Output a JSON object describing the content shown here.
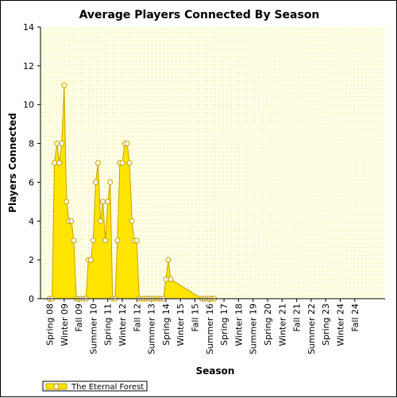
{
  "chart_data": {
    "type": "area",
    "title": "Average Players Connected By Season",
    "xlabel": "Season",
    "ylabel": "Players Connected",
    "ylim": [
      0,
      14
    ],
    "yticks": [
      0,
      2,
      4,
      6,
      8,
      10,
      12,
      14
    ],
    "categories": [
      "Spring 08",
      "Winter 09",
      "Fall 09",
      "Summer 10",
      "Spring 11",
      "Winter 12",
      "Fall 12",
      "Summer 13",
      "Spring 14",
      "Winter 15",
      "Fall 15",
      "Summer 16",
      "Spring 17",
      "Winter 18",
      "Summer 19",
      "Spring 20",
      "Winter 21",
      "Fall 21",
      "Summer 22",
      "Spring 23",
      "Winter 24",
      "Fall 24"
    ],
    "grid": true,
    "legend_position": "bottom-left",
    "series": [
      {
        "name": "The Eternal Forest",
        "color": "#FFE400",
        "edge_color": "#C8A000",
        "points": [
          [
            0.0,
            0
          ],
          [
            0.5,
            0
          ],
          [
            1.0,
            7
          ],
          [
            1.5,
            8
          ],
          [
            2.0,
            7
          ],
          [
            2.5,
            8
          ],
          [
            3.0,
            11
          ],
          [
            3.5,
            5
          ],
          [
            4.0,
            4
          ],
          [
            4.5,
            4
          ],
          [
            5.0,
            3
          ],
          [
            5.5,
            0
          ],
          [
            6.0,
            0
          ],
          [
            6.5,
            0
          ],
          [
            7.0,
            0
          ],
          [
            7.5,
            0
          ],
          [
            8.0,
            2
          ],
          [
            8.5,
            2
          ],
          [
            9.0,
            3
          ],
          [
            9.5,
            6
          ],
          [
            10.0,
            7
          ],
          [
            10.5,
            4
          ],
          [
            11.0,
            5
          ],
          [
            11.5,
            3
          ],
          [
            12.0,
            5
          ],
          [
            12.5,
            6
          ],
          [
            13.0,
            0
          ],
          [
            13.5,
            0
          ],
          [
            14.0,
            3
          ],
          [
            14.5,
            7
          ],
          [
            15.0,
            7
          ],
          [
            15.5,
            8
          ],
          [
            16.0,
            8
          ],
          [
            16.5,
            7
          ],
          [
            17.0,
            4
          ],
          [
            17.5,
            3
          ],
          [
            18.0,
            3
          ],
          [
            18.5,
            0
          ],
          [
            19.0,
            0
          ],
          [
            19.5,
            0
          ],
          [
            20.0,
            0
          ],
          [
            20.5,
            0
          ],
          [
            21.0,
            0
          ],
          [
            21.5,
            0
          ],
          [
            22.0,
            0
          ],
          [
            22.5,
            0
          ],
          [
            23.0,
            0
          ],
          [
            23.5,
            0
          ],
          [
            24.0,
            1
          ],
          [
            24.5,
            2
          ],
          [
            25.0,
            1
          ],
          [
            31.5,
            0
          ],
          [
            32.0,
            0
          ],
          [
            32.5,
            0
          ],
          [
            33.0,
            0
          ],
          [
            33.5,
            0
          ],
          [
            34.0,
            0
          ]
        ]
      }
    ]
  }
}
